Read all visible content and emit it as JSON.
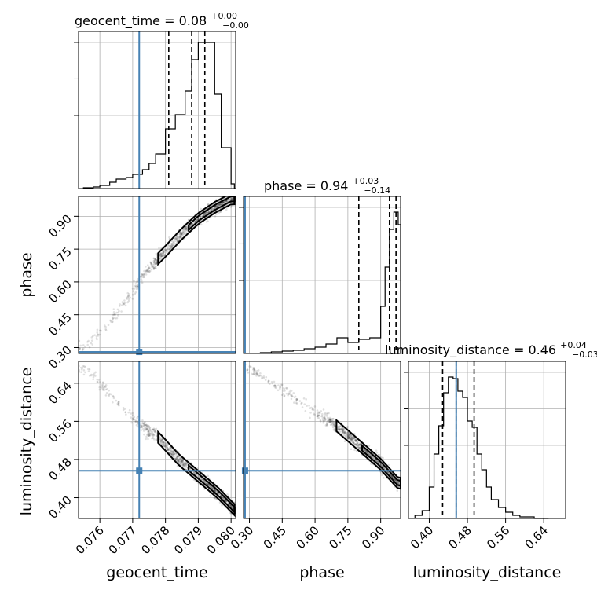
{
  "chart_data": {
    "type": "corner",
    "parameters": [
      "geocent_time",
      "phase",
      "luminosity_distance"
    ],
    "truths": {
      "geocent_time": 0.0772,
      "phase": 0.28,
      "luminosity_distance": 0.4565
    },
    "titles": {
      "geocent_time": {
        "param": "geocent_time",
        "median": "0.08",
        "plus": "+0.00",
        "minus": "−0.00"
      },
      "phase": {
        "param": "phase",
        "median": "0.94",
        "plus": "+0.03",
        "minus": "−0.14"
      },
      "luminosity_distance": {
        "param": "luminosity_distance",
        "median": "0.46",
        "plus": "+0.04",
        "minus": "−0.03"
      }
    },
    "xlabels": {
      "geocent_time": "geocent_time",
      "phase": "phase",
      "luminosity_distance": "luminosity_distance"
    },
    "ylabels": {
      "phase": "phase",
      "luminosity_distance": "luminosity_distance"
    },
    "ticks": {
      "geocent_time": [
        "0.076",
        "0.077",
        "0.078",
        "0.079",
        "0.080"
      ],
      "phase": [
        "0.30",
        "0.45",
        "0.60",
        "0.75",
        "0.90"
      ],
      "luminosity_distance": [
        "0.40",
        "0.48",
        "0.56",
        "0.64"
      ],
      "luminosity_distance_y": [
        "0.40",
        "0.48",
        "0.56",
        "0.64"
      ]
    },
    "ranges": {
      "geocent_time": [
        0.07535,
        0.08014
      ],
      "phase": [
        0.273,
        0.991
      ],
      "luminosity_distance": [
        0.3564,
        0.6858
      ]
    },
    "marginals": {
      "geocent_time": {
        "quantiles": [
          0.0781,
          0.0788,
          0.0792
        ],
        "bin_edges": [
          0.0755,
          0.0758,
          0.076,
          0.0763,
          0.0765,
          0.0768,
          0.077,
          0.0773,
          0.0775,
          0.0777,
          0.078,
          0.0783,
          0.0786,
          0.0788,
          0.079,
          0.0792,
          0.0795,
          0.0797,
          0.08,
          0.0801
        ],
        "counts": [
          0.005,
          0.01,
          0.02,
          0.04,
          0.06,
          0.07,
          0.09,
          0.12,
          0.16,
          0.22,
          0.38,
          0.47,
          0.62,
          0.82,
          0.93,
          0.93,
          0.6,
          0.26,
          0.03
        ]
      },
      "phase": {
        "quantiles": [
          0.8,
          0.94,
          0.97
        ],
        "bin_edges": [
          0.35,
          0.4,
          0.45,
          0.5,
          0.55,
          0.6,
          0.65,
          0.7,
          0.75,
          0.8,
          0.85,
          0.9,
          0.92,
          0.94,
          0.96,
          0.98,
          0.991
        ],
        "counts": [
          0.005,
          0.01,
          0.015,
          0.02,
          0.03,
          0.04,
          0.06,
          0.1,
          0.07,
          0.09,
          0.1,
          0.3,
          0.55,
          0.79,
          0.9,
          0.82
        ]
      },
      "luminosity_distance": {
        "quantiles": [
          0.428,
          0.4565,
          0.494
        ],
        "bin_edges": [
          0.37,
          0.385,
          0.4,
          0.41,
          0.42,
          0.43,
          0.44,
          0.45,
          0.46,
          0.47,
          0.48,
          0.49,
          0.5,
          0.51,
          0.52,
          0.53,
          0.545,
          0.56,
          0.575,
          0.59,
          0.605,
          0.62,
          0.635,
          0.65
        ],
        "counts": [
          0.02,
          0.05,
          0.2,
          0.41,
          0.59,
          0.8,
          0.9,
          0.89,
          0.81,
          0.77,
          0.62,
          0.58,
          0.41,
          0.31,
          0.2,
          0.12,
          0.07,
          0.04,
          0.02,
          0.01,
          0.01,
          0.0,
          0.0
        ]
      }
    },
    "joint_trends": {
      "phase_vs_geocent_time": {
        "x": [
          0.0756,
          0.0765,
          0.0772,
          0.0776,
          0.078,
          0.0785,
          0.079,
          0.0795,
          0.08
        ],
        "y": [
          0.3,
          0.45,
          0.6,
          0.68,
          0.74,
          0.82,
          0.89,
          0.94,
          0.98
        ]
      },
      "luminosity_distance_vs_geocent_time": {
        "x": [
          0.0756,
          0.0765,
          0.0772,
          0.0778,
          0.0784,
          0.079,
          0.0796,
          0.0801
        ],
        "y": [
          0.67,
          0.6,
          0.555,
          0.525,
          0.48,
          0.445,
          0.41,
          0.375
        ]
      },
      "luminosity_distance_vs_phase": {
        "x": [
          0.3,
          0.4,
          0.5,
          0.6,
          0.7,
          0.8,
          0.9,
          0.98
        ],
        "y": [
          0.67,
          0.64,
          0.61,
          0.58,
          0.55,
          0.51,
          0.47,
          0.43
        ]
      }
    }
  }
}
